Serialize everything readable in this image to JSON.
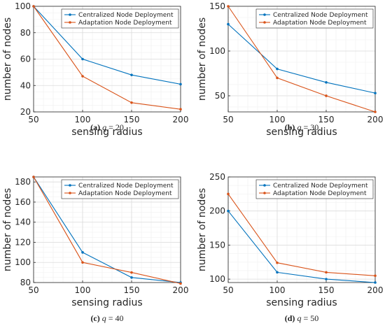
{
  "chart_data": [
    {
      "type": "line",
      "caption": {
        "tag": "(a)",
        "var": "q",
        "rest": " = 20"
      },
      "x": [
        50,
        100,
        150,
        200
      ],
      "xlabel": "sensing radius",
      "ylabel": "number of nodes",
      "xlim": [
        50,
        200
      ],
      "ylim": [
        20,
        100
      ],
      "xticks": [
        50,
        100,
        150,
        200
      ],
      "yticks": [
        20,
        40,
        60,
        80,
        100
      ],
      "grid": true,
      "legend": "top-right",
      "series": [
        {
          "name": "Centralized Node Deployment",
          "color": "#0072BD",
          "values": [
            100,
            60,
            48,
            41
          ]
        },
        {
          "name": "Adaptation Node Deployment",
          "color": "#D95319",
          "values": [
            100,
            47,
            27,
            22
          ]
        }
      ]
    },
    {
      "type": "line",
      "caption": {
        "tag": "(b)",
        "var": "q",
        "rest": " = 30"
      },
      "x": [
        50,
        100,
        150,
        200
      ],
      "xlabel": "sensing radius",
      "ylabel": "number of nodes",
      "xlim": [
        50,
        200
      ],
      "ylim": [
        32,
        150
      ],
      "xticks": [
        50,
        100,
        150,
        200
      ],
      "yticks": [
        50,
        100,
        150
      ],
      "grid": true,
      "legend": "top-right",
      "series": [
        {
          "name": "Centralized Node Deployment",
          "color": "#0072BD",
          "values": [
            130,
            80,
            65,
            53
          ]
        },
        {
          "name": "Adaptation Node Deployment",
          "color": "#D95319",
          "values": [
            150,
            70,
            50,
            32
          ]
        }
      ]
    },
    {
      "type": "line",
      "caption": {
        "tag": "(c)",
        "var": "q",
        "rest": " = 40"
      },
      "x": [
        50,
        100,
        150,
        200
      ],
      "xlabel": "sensing radius",
      "ylabel": "number of nodes",
      "xlim": [
        50,
        200
      ],
      "ylim": [
        80,
        185
      ],
      "xticks": [
        50,
        100,
        150,
        200
      ],
      "yticks": [
        80,
        100,
        120,
        140,
        160,
        180
      ],
      "grid": true,
      "legend": "top-right",
      "series": [
        {
          "name": "Centralized Node Deployment",
          "color": "#0072BD",
          "values": [
            185,
            110,
            85,
            80
          ]
        },
        {
          "name": "Adaptation Node Deployment",
          "color": "#D95319",
          "values": [
            185,
            100,
            90,
            79
          ]
        }
      ]
    },
    {
      "type": "line",
      "caption": {
        "tag": "(d)",
        "var": "q",
        "rest": " = 50"
      },
      "x": [
        50,
        100,
        150,
        200
      ],
      "xlabel": "sensing radius",
      "ylabel": "number of nodes",
      "xlim": [
        50,
        200
      ],
      "ylim": [
        95,
        250
      ],
      "xticks": [
        50,
        100,
        150,
        200
      ],
      "yticks": [
        100,
        150,
        200,
        250
      ],
      "grid": true,
      "legend": "top-right",
      "series": [
        {
          "name": "Centralized Node Deployment",
          "color": "#0072BD",
          "values": [
            200,
            110,
            100,
            95
          ]
        },
        {
          "name": "Adaptation Node Deployment",
          "color": "#D95319",
          "values": [
            225,
            124,
            110,
            105
          ]
        }
      ]
    }
  ]
}
